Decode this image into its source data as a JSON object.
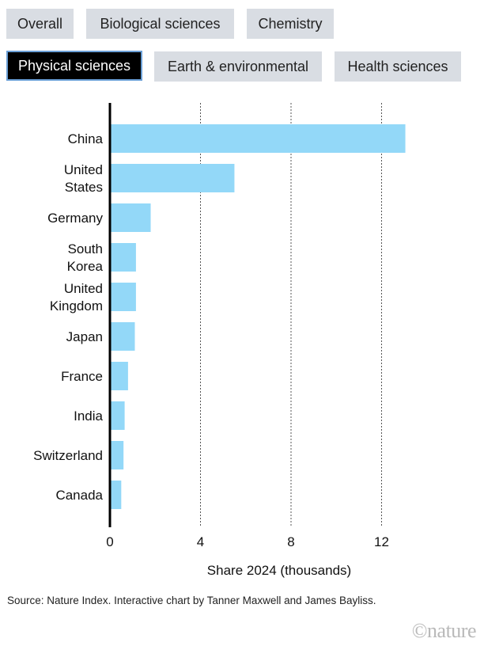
{
  "tabs": [
    {
      "label": "Overall",
      "active": false
    },
    {
      "label": "Biological sciences",
      "active": false
    },
    {
      "label": "Chemistry",
      "active": false
    },
    {
      "label": "Physical sciences",
      "active": true
    },
    {
      "label": "Earth & environmental",
      "active": false
    },
    {
      "label": "Health sciences",
      "active": false
    }
  ],
  "colors": {
    "bar": "#93d8f8",
    "axis": "#000000",
    "grid": "#555555"
  },
  "chart_data": {
    "type": "bar",
    "orientation": "horizontal",
    "categories": [
      [
        "China"
      ],
      [
        "United",
        "States"
      ],
      [
        "Germany"
      ],
      [
        "South",
        "Korea"
      ],
      [
        "United",
        "Kingdom"
      ],
      [
        "Japan"
      ],
      [
        "France"
      ],
      [
        "India"
      ],
      [
        "Switzerland"
      ],
      [
        "Canada"
      ]
    ],
    "values": [
      13.05,
      5.5,
      1.8,
      1.15,
      1.15,
      1.1,
      0.8,
      0.65,
      0.6,
      0.5
    ],
    "xlabel": "Share 2024 (thousands)",
    "xlim": [
      0,
      14.3
    ],
    "xticks": [
      0,
      4,
      8,
      12
    ],
    "grid": "vertical-dashed"
  },
  "source": "Source: Nature Index. Interactive chart by Tanner Maxwell and James Bayliss.",
  "logo": "©nature"
}
